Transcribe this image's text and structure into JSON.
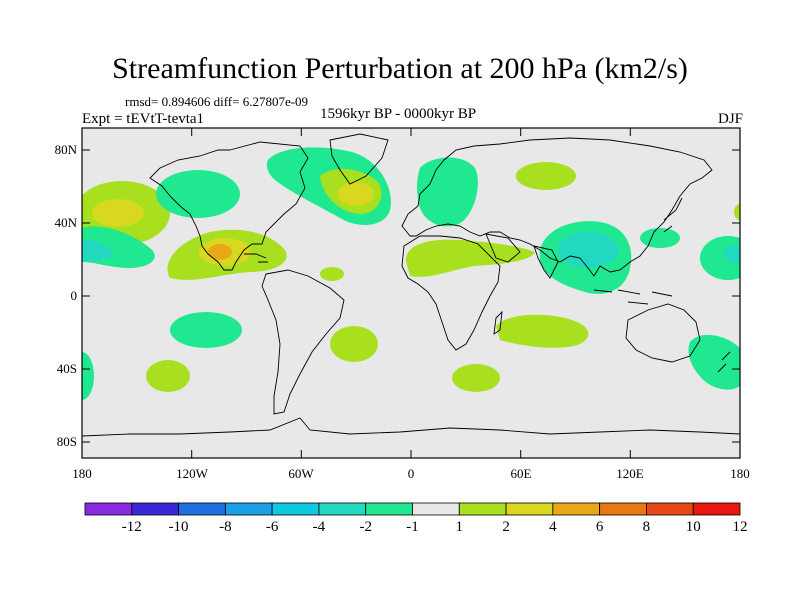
{
  "title": "Streamfunction Perturbation at 200 hPa (km2/s)",
  "stats": "rmsd= 0.894606 diff= 6.27807e-09",
  "period": "1596kyr BP - 0000kyr BP",
  "experiment": "Expt = tEVtT-tevta1",
  "season": "DJF",
  "lat_labels": [
    "80N",
    "40N",
    "0",
    "40S",
    "80S"
  ],
  "lon_labels": [
    "180",
    "120W",
    "60W",
    "0",
    "60E",
    "120E",
    "180"
  ],
  "colorbar": {
    "labels": [
      "-12",
      "-10",
      "-8",
      "-6",
      "-4",
      "-2",
      "-1",
      "1",
      "2",
      "4",
      "6",
      "8",
      "10",
      "12"
    ],
    "colors": [
      "#8a2be2",
      "#3a28d4",
      "#1f6fe0",
      "#1aa0e6",
      "#10c8e0",
      "#22d8c0",
      "#20e890",
      "#e8e8e8",
      "#a8e020",
      "#d8d820",
      "#e8a818",
      "#e87810",
      "#e84818",
      "#e81810"
    ]
  },
  "colors": {
    "background": "#e8e8e8",
    "pos_1": "#a8e020",
    "pos_2": "#d8d820",
    "pos_4": "#e8a818",
    "neg_1": "#20e890",
    "neg_2": "#22d8c0",
    "neg_4": "#10c8e0"
  }
}
